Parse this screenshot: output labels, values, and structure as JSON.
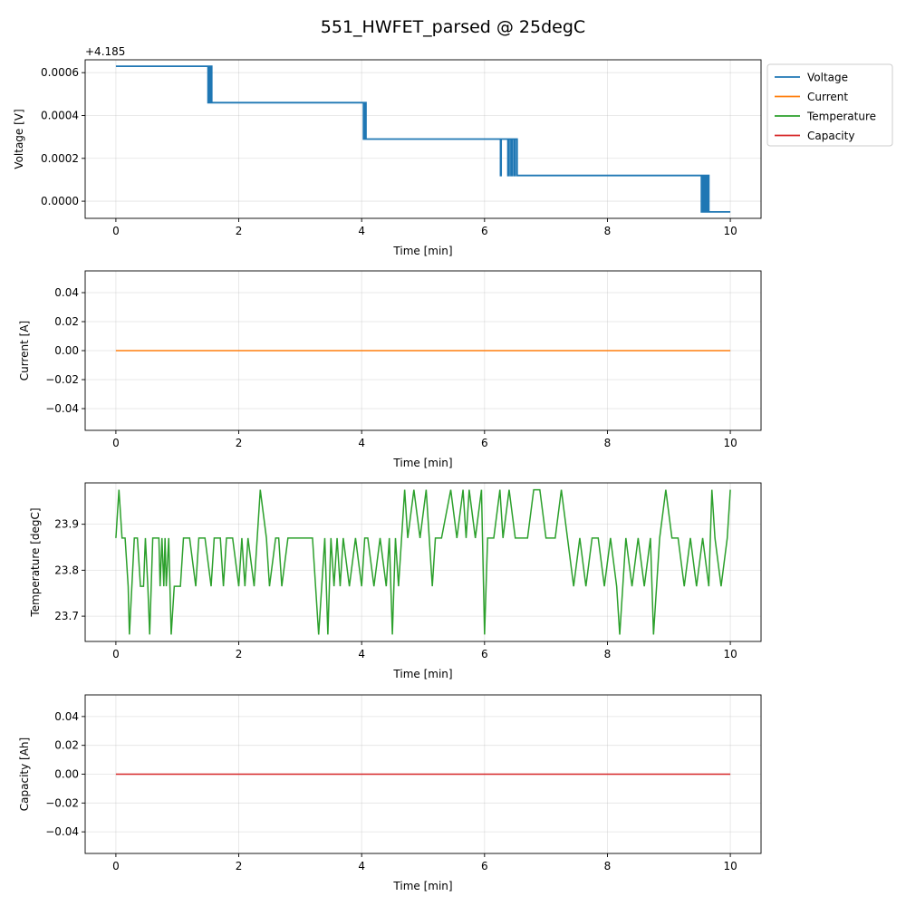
{
  "chart_data": {
    "title": "551_HWFET_parsed @ 25degC",
    "type": "line",
    "legend": {
      "placement": "outside-top-right",
      "entries": [
        {
          "label": "Voltage",
          "color": "#1f77b4"
        },
        {
          "label": "Current",
          "color": "#ff7f0e"
        },
        {
          "label": "Temperature",
          "color": "#2ca02c"
        },
        {
          "label": "Capacity",
          "color": "#d62728"
        }
      ]
    },
    "grid": true,
    "subplots": [
      {
        "name": "voltage",
        "xlabel": "Time [min]",
        "ylabel": "Voltage [V]",
        "offset_label": "+4.185",
        "xlim": [
          -0.5,
          10.5
        ],
        "ylim": [
          -8e-05,
          0.00066
        ],
        "xticks": [
          0,
          2,
          4,
          6,
          8,
          10
        ],
        "xtick_labels": [
          "0",
          "2",
          "4",
          "6",
          "8",
          "10"
        ],
        "yticks": [
          0,
          0.0002,
          0.0004,
          0.0006
        ],
        "ytick_labels": [
          "0.0000",
          "0.0002",
          "0.0004",
          "0.0006"
        ],
        "color": "#1f77b4",
        "line_width": 1.8,
        "series": {
          "name": "Voltage",
          "x": [
            0,
            1.5,
            1.5,
            1.51,
            1.51,
            1.52,
            1.52,
            1.53,
            1.53,
            1.54,
            1.54,
            1.55,
            1.55,
            1.56,
            1.56,
            1.57,
            1.57,
            4.03,
            4.03,
            4.04,
            4.04,
            4.05,
            4.05,
            4.06,
            4.06,
            4.07,
            4.07,
            6.26,
            6.26,
            6.27,
            6.27,
            6.38,
            6.38,
            6.4,
            6.4,
            6.43,
            6.43,
            6.45,
            6.45,
            6.48,
            6.48,
            6.5,
            6.5,
            6.53,
            6.53,
            6.55,
            6.55,
            9.53,
            9.53,
            9.55,
            9.55,
            9.57,
            9.57,
            9.59,
            9.59,
            9.61,
            9.61,
            9.63,
            9.63,
            9.65,
            9.65,
            10.0
          ],
          "y": [
            0.00063,
            0.00063,
            0.00046,
            0.00046,
            0.00063,
            0.00063,
            0.00046,
            0.00046,
            0.00063,
            0.00063,
            0.00046,
            0.00046,
            0.00063,
            0.00063,
            0.00046,
            0.00046,
            0.00046,
            0.00046,
            0.00029,
            0.00029,
            0.00046,
            0.00046,
            0.00029,
            0.00029,
            0.00046,
            0.00046,
            0.00029,
            0.00029,
            0.00012,
            0.00012,
            0.00029,
            0.00029,
            0.00012,
            0.00012,
            0.00029,
            0.00029,
            0.00012,
            0.00012,
            0.00029,
            0.00029,
            0.00012,
            0.00012,
            0.00029,
            0.00029,
            0.00012,
            0.00012,
            0.00012,
            0.00012,
            -5e-05,
            -5e-05,
            0.00012,
            0.00012,
            -5e-05,
            -5e-05,
            0.00012,
            0.00012,
            -5e-05,
            -5e-05,
            0.00012,
            0.00012,
            -5e-05,
            -5e-05
          ]
        }
      },
      {
        "name": "current",
        "xlabel": "Time [min]",
        "ylabel": "Current [A]",
        "xlim": [
          -0.5,
          10.5
        ],
        "ylim": [
          -0.055,
          0.055
        ],
        "xticks": [
          0,
          2,
          4,
          6,
          8,
          10
        ],
        "xtick_labels": [
          "0",
          "2",
          "4",
          "6",
          "8",
          "10"
        ],
        "yticks": [
          -0.04,
          -0.02,
          0,
          0.02,
          0.04
        ],
        "ytick_labels": [
          "−0.04",
          "−0.02",
          "0.00",
          "0.02",
          "0.04"
        ],
        "color": "#ff7f0e",
        "line_width": 1.5,
        "series": {
          "name": "Current",
          "x": [
            0,
            10
          ],
          "y": [
            0,
            0
          ]
        }
      },
      {
        "name": "temperature",
        "xlabel": "Time [min]",
        "ylabel": "Temperature [degC]",
        "xlim": [
          -0.5,
          10.5
        ],
        "ylim": [
          23.645,
          23.99
        ],
        "xticks": [
          0,
          2,
          4,
          6,
          8,
          10
        ],
        "xtick_labels": [
          "0",
          "2",
          "4",
          "6",
          "8",
          "10"
        ],
        "yticks": [
          23.7,
          23.8,
          23.9
        ],
        "ytick_labels": [
          "23.7",
          "23.8",
          "23.9"
        ],
        "color": "#2ca02c",
        "line_width": 1.5,
        "series": {
          "name": "Temperature",
          "x": [
            0,
            0.05,
            0.1,
            0.15,
            0.2,
            0.22,
            0.3,
            0.35,
            0.4,
            0.45,
            0.48,
            0.52,
            0.55,
            0.6,
            0.65,
            0.7,
            0.72,
            0.75,
            0.78,
            0.8,
            0.82,
            0.86,
            0.9,
            0.95,
            1.05,
            1.1,
            1.2,
            1.3,
            1.35,
            1.45,
            1.55,
            1.6,
            1.7,
            1.75,
            1.8,
            1.9,
            2.0,
            2.05,
            2.1,
            2.15,
            2.25,
            2.3,
            2.35,
            2.45,
            2.5,
            2.6,
            2.65,
            2.7,
            2.8,
            2.9,
            3.0,
            3.1,
            3.2,
            3.25,
            3.3,
            3.35,
            3.4,
            3.45,
            3.5,
            3.55,
            3.6,
            3.65,
            3.7,
            3.8,
            3.9,
            4.0,
            4.05,
            4.1,
            4.2,
            4.3,
            4.4,
            4.45,
            4.5,
            4.55,
            4.6,
            4.65,
            4.7,
            4.75,
            4.85,
            4.95,
            5.05,
            5.15,
            5.2,
            5.3,
            5.45,
            5.55,
            5.65,
            5.7,
            5.75,
            5.85,
            5.95,
            6.0,
            6.05,
            6.15,
            6.25,
            6.3,
            6.4,
            6.5,
            6.6,
            6.7,
            6.8,
            6.9,
            7.0,
            7.05,
            7.15,
            7.25,
            7.35,
            7.45,
            7.55,
            7.65,
            7.75,
            7.85,
            7.95,
            8.05,
            8.15,
            8.2,
            8.3,
            8.4,
            8.5,
            8.6,
            8.7,
            8.75,
            8.85,
            8.95,
            9.05,
            9.15,
            9.25,
            9.35,
            9.45,
            9.55,
            9.65,
            9.7,
            9.75,
            9.85,
            9.95,
            10.0
          ],
          "y": [
            23.87,
            23.975,
            23.87,
            23.87,
            23.765,
            23.66,
            23.87,
            23.87,
            23.765,
            23.765,
            23.87,
            23.765,
            23.66,
            23.87,
            23.87,
            23.87,
            23.765,
            23.87,
            23.765,
            23.87,
            23.765,
            23.87,
            23.66,
            23.765,
            23.765,
            23.87,
            23.87,
            23.765,
            23.87,
            23.87,
            23.765,
            23.87,
            23.87,
            23.765,
            23.87,
            23.87,
            23.765,
            23.87,
            23.765,
            23.87,
            23.765,
            23.87,
            23.975,
            23.87,
            23.765,
            23.87,
            23.87,
            23.765,
            23.87,
            23.87,
            23.87,
            23.87,
            23.87,
            23.765,
            23.66,
            23.765,
            23.87,
            23.66,
            23.87,
            23.765,
            23.87,
            23.765,
            23.87,
            23.765,
            23.87,
            23.765,
            23.87,
            23.87,
            23.765,
            23.87,
            23.765,
            23.87,
            23.66,
            23.87,
            23.765,
            23.87,
            23.975,
            23.87,
            23.975,
            23.87,
            23.975,
            23.765,
            23.87,
            23.87,
            23.975,
            23.87,
            23.975,
            23.87,
            23.975,
            23.87,
            23.975,
            23.66,
            23.87,
            23.87,
            23.975,
            23.87,
            23.975,
            23.87,
            23.87,
            23.87,
            23.975,
            23.975,
            23.87,
            23.87,
            23.87,
            23.975,
            23.87,
            23.765,
            23.87,
            23.765,
            23.87,
            23.87,
            23.765,
            23.87,
            23.765,
            23.66,
            23.87,
            23.765,
            23.87,
            23.765,
            23.87,
            23.66,
            23.87,
            23.975,
            23.87,
            23.87,
            23.765,
            23.87,
            23.765,
            23.87,
            23.765,
            23.975,
            23.87,
            23.765,
            23.87,
            23.975
          ]
        }
      },
      {
        "name": "capacity",
        "xlabel": "Time [min]",
        "ylabel": "Capacity [Ah]",
        "xlim": [
          -0.5,
          10.5
        ],
        "ylim": [
          -0.055,
          0.055
        ],
        "xticks": [
          0,
          2,
          4,
          6,
          8,
          10
        ],
        "xtick_labels": [
          "0",
          "2",
          "4",
          "6",
          "8",
          "10"
        ],
        "yticks": [
          -0.04,
          -0.02,
          0,
          0.02,
          0.04
        ],
        "ytick_labels": [
          "−0.04",
          "−0.02",
          "0.00",
          "0.02",
          "0.04"
        ],
        "color": "#d62728",
        "line_width": 1.5,
        "series": {
          "name": "Capacity",
          "x": [
            0,
            10
          ],
          "y": [
            0,
            0
          ]
        }
      }
    ]
  }
}
